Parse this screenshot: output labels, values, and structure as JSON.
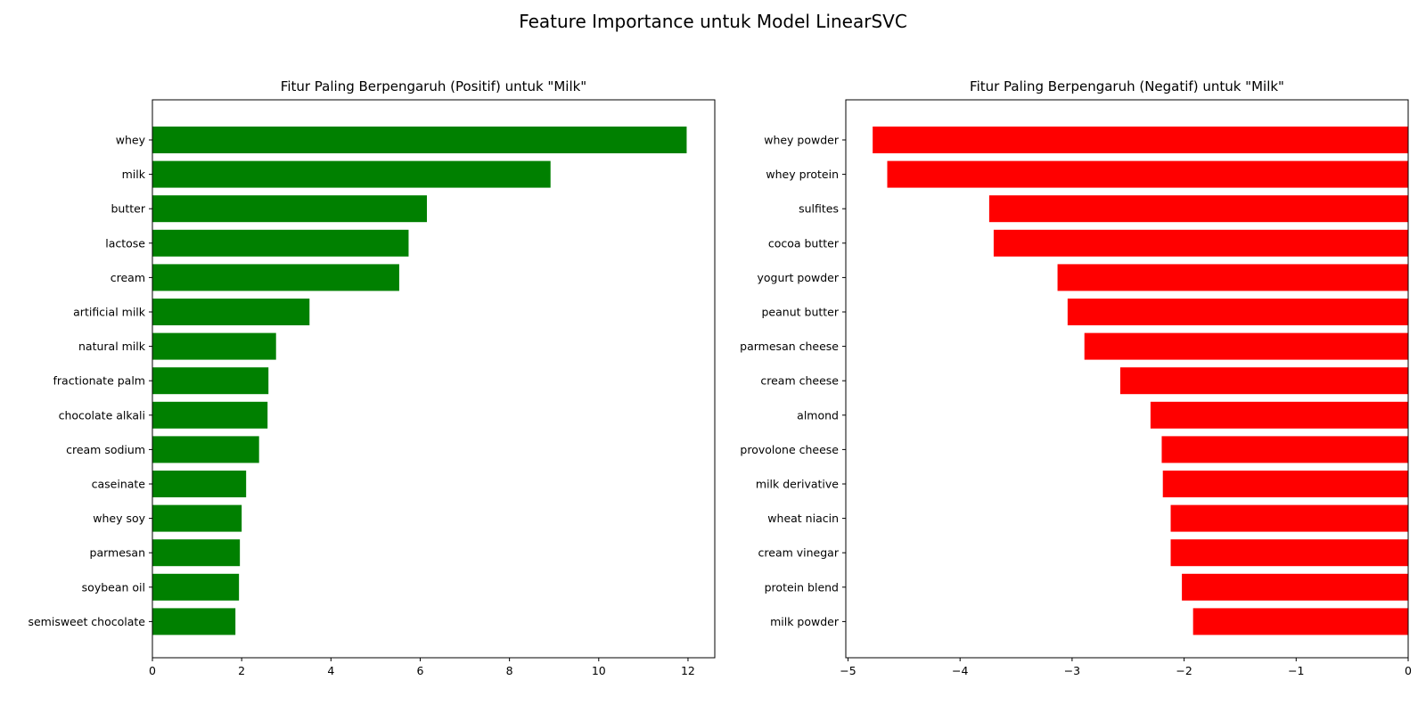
{
  "figure": {
    "title": "Feature Importance untuk Model LinearSVC"
  },
  "chart_data": [
    {
      "type": "bar",
      "orientation": "horizontal",
      "title": "Fitur Paling Berpengaruh (Positif) untuk \"Milk\"",
      "xlabel": "",
      "ylabel": "",
      "color": "#008000",
      "xlim": [
        0,
        12.6
      ],
      "xticks": [
        0,
        2,
        4,
        6,
        8,
        10,
        12
      ],
      "grid": false,
      "categories": [
        "whey",
        "milk",
        "butter",
        "lactose",
        "cream",
        "artificial milk",
        "natural milk",
        "fractionate palm",
        "chocolate alkali",
        "cream sodium",
        "caseinate",
        "whey soy",
        "parmesan",
        "soybean oil",
        "semisweet chocolate"
      ],
      "values": [
        11.97,
        8.92,
        6.15,
        5.74,
        5.53,
        3.52,
        2.77,
        2.6,
        2.58,
        2.39,
        2.1,
        2.0,
        1.96,
        1.94,
        1.86
      ]
    },
    {
      "type": "bar",
      "orientation": "horizontal",
      "title": "Fitur Paling Berpengaruh (Negatif) untuk \"Milk\"",
      "xlabel": "",
      "ylabel": "",
      "color": "#ff0000",
      "xlim": [
        -5.02,
        0
      ],
      "xticks": [
        -5,
        -4,
        -3,
        -2,
        -1,
        0
      ],
      "xtick_labels": [
        "−5",
        "−4",
        "−3",
        "−2",
        "−1",
        "0"
      ],
      "grid": false,
      "categories": [
        "whey powder",
        "whey protein",
        "sulfites",
        "cocoa butter",
        "yogurt powder",
        "peanut butter",
        "parmesan cheese",
        "cream cheese",
        "almond",
        "provolone cheese",
        "milk derivative",
        "wheat niacin",
        "cream vinegar",
        "protein blend",
        "milk powder"
      ],
      "values": [
        -4.78,
        -4.65,
        -3.74,
        -3.7,
        -3.13,
        -3.04,
        -2.89,
        -2.57,
        -2.3,
        -2.2,
        -2.19,
        -2.12,
        -2.12,
        -2.02,
        -1.92
      ]
    }
  ]
}
